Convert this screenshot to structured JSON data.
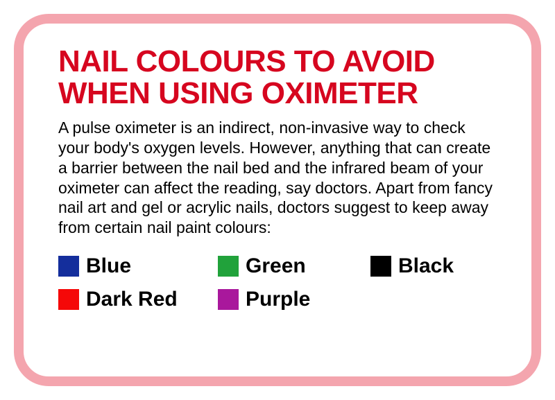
{
  "card": {
    "border_color": "#f4a5ae",
    "border_width": 14,
    "border_radius": 50,
    "background": "#ffffff"
  },
  "title": {
    "text": "NAIL COLOURS TO AVOID WHEN USING OXIMETER",
    "color": "#d6061f",
    "fontsize": 44,
    "fontweight": 900
  },
  "description": {
    "text": "A pulse oximeter is an indirect, non-invasive way to check your body's oxygen levels. However, anything that can create a barrier between the nail bed and the infrared beam of your oximeter can affect the reading, say doctors. Apart from fancy nail art and gel or acrylic nails, doctors suggest to keep away from certain nail paint colours:",
    "color": "#000000",
    "fontsize": 23
  },
  "swatches": [
    {
      "label": "Blue",
      "color": "#142e9c"
    },
    {
      "label": "Green",
      "color": "#21a23b"
    },
    {
      "label": "Black",
      "color": "#000000"
    },
    {
      "label": "Dark Red",
      "color": "#f50808"
    },
    {
      "label": "Purple",
      "color": "#a9189c"
    }
  ],
  "swatch_label_style": {
    "fontsize": 30,
    "fontweight": 900,
    "color": "#000000"
  },
  "swatch_box_size": 30
}
